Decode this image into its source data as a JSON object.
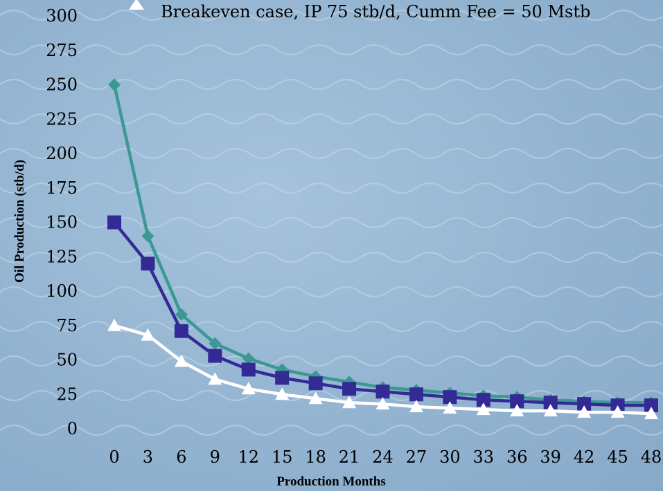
{
  "chart_data": {
    "type": "line",
    "xlabel": "Production Months",
    "ylabel": "Oil Production (stb/d)",
    "x": [
      0,
      3,
      6,
      9,
      12,
      15,
      18,
      21,
      24,
      27,
      30,
      33,
      36,
      39,
      42,
      45,
      48
    ],
    "ylim": [
      0,
      300
    ],
    "yticks": [
      0,
      25,
      50,
      75,
      100,
      125,
      150,
      175,
      200,
      225,
      250,
      275,
      300
    ],
    "grid": false,
    "legend": {
      "placement": "top",
      "entries": [
        "Breakeven case, IP 75 stb/d, Cumm Fee = 50 Mstb"
      ]
    },
    "series": [
      {
        "values": [
          250,
          140,
          83,
          62,
          51,
          43,
          38,
          34,
          30,
          28,
          26,
          24,
          23,
          21,
          20,
          19,
          19
        ],
        "color": "#3b9893",
        "marker": "diamond"
      },
      {
        "values": [
          150,
          120,
          71,
          53,
          43,
          37,
          33,
          29,
          27,
          25,
          23,
          21,
          20,
          19,
          18,
          17,
          17
        ],
        "color": "#332a95",
        "marker": "square"
      },
      {
        "name": "Breakeven case, IP 75 stb/d, Cumm Fee = 50 Mstb",
        "values": [
          75,
          68,
          49,
          36,
          29,
          25,
          22,
          19,
          18,
          16,
          15,
          14,
          13,
          13,
          12,
          12,
          11
        ],
        "color": "#ffffff",
        "marker": "triangle"
      }
    ]
  }
}
